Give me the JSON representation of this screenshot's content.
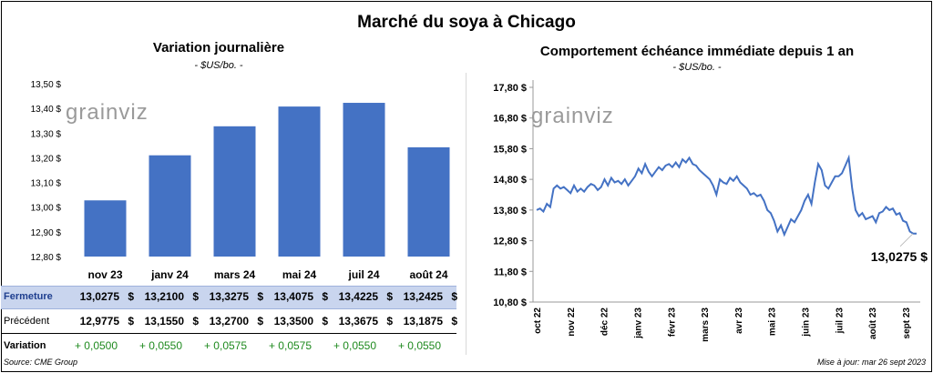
{
  "title": "Marché du soya à Chicago",
  "left_panel": {
    "title": "Variation  journalière",
    "subtitle": "- $US/bo. -",
    "logo": "grainviz"
  },
  "right_panel": {
    "title": "Comportement  échéance immédiate depuis 1 an",
    "subtitle": "- $US/bo. -",
    "logo": "grainviz",
    "last_value_label": "13,0275 $"
  },
  "table": {
    "rows": [
      {
        "label": "Fermeture",
        "values": [
          "13,0275",
          "13,2100",
          "13,3275",
          "13,4075",
          "13,4225",
          "13,2425"
        ],
        "unit": "$"
      },
      {
        "label": "Précédent",
        "values": [
          "12,9775",
          "13,1550",
          "13,2700",
          "13,3500",
          "13,3675",
          "13,1875"
        ],
        "unit": "$"
      },
      {
        "label": "Variation",
        "values": [
          "+ 0,0500",
          "+ 0,0550",
          "+ 0,0575",
          "+ 0,0575",
          "+ 0,0550",
          "+ 0,0550"
        ],
        "unit": ""
      }
    ],
    "colors": {
      "fermeture_bg": "#c9d5ee",
      "variation_text": "#1f8a1f"
    }
  },
  "footer": {
    "source": "Source: CME Group",
    "updated": "Mise à jour: mar 26 sept 2023"
  },
  "chart_data": [
    {
      "type": "bar",
      "categories": [
        "nov 23",
        "janv 24",
        "mars 24",
        "mai 24",
        "juil 24",
        "août 24"
      ],
      "values": [
        13.0275,
        13.21,
        13.3275,
        13.4075,
        13.4225,
        13.2425
      ],
      "ylim": [
        12.8,
        13.5
      ],
      "yticks": [
        12.8,
        12.9,
        13.0,
        13.1,
        13.2,
        13.3,
        13.4,
        13.5
      ],
      "ytick_labels": [
        "12,80 $",
        "12,90 $",
        "13,00 $",
        "13,10 $",
        "13,20 $",
        "13,30 $",
        "13,40 $",
        "13,50 $"
      ],
      "color": "#4472c4",
      "grid": false
    },
    {
      "type": "line",
      "x_labels": [
        "oct 22",
        "nov 22",
        "déc 22",
        "janv 23",
        "févr 23",
        "mars 23",
        "avr 23",
        "mai 23",
        "juin 23",
        "juil 23",
        "août 23",
        "sept 23"
      ],
      "ylim": [
        10.8,
        17.8
      ],
      "yticks": [
        10.8,
        11.8,
        12.8,
        13.8,
        14.8,
        15.8,
        16.8,
        17.8
      ],
      "ytick_labels": [
        "10,80 $",
        "11,80 $",
        "12,80 $",
        "13,80 $",
        "14,80 $",
        "15,80 $",
        "16,80 $",
        "17,80 $"
      ],
      "values": [
        13.8,
        13.85,
        13.75,
        14.0,
        13.9,
        14.5,
        14.6,
        14.5,
        14.55,
        14.45,
        14.35,
        14.6,
        14.4,
        14.5,
        14.4,
        14.55,
        14.65,
        14.6,
        14.45,
        14.55,
        14.8,
        14.6,
        14.85,
        14.7,
        14.75,
        14.65,
        14.8,
        14.6,
        14.75,
        14.9,
        15.15,
        15.0,
        15.3,
        15.05,
        14.9,
        15.05,
        15.2,
        15.1,
        15.25,
        15.3,
        15.2,
        15.35,
        15.2,
        15.45,
        15.35,
        15.5,
        15.3,
        15.25,
        15.1,
        15.0,
        14.9,
        14.8,
        14.6,
        14.3,
        14.8,
        14.7,
        14.65,
        14.85,
        14.75,
        14.9,
        14.7,
        14.6,
        14.5,
        14.3,
        14.35,
        14.25,
        14.3,
        14.1,
        13.8,
        13.7,
        13.45,
        13.1,
        13.3,
        13.0,
        13.25,
        13.5,
        13.4,
        13.6,
        13.8,
        14.1,
        14.3,
        14.0,
        14.7,
        15.3,
        15.1,
        14.6,
        14.5,
        14.7,
        14.9,
        14.9,
        15.0,
        15.25,
        15.5,
        14.5,
        13.8,
        13.6,
        13.7,
        13.5,
        13.55,
        13.6,
        13.4,
        13.7,
        13.75,
        13.9,
        13.8,
        13.85,
        13.65,
        13.7,
        13.45,
        13.4,
        13.1,
        13.03,
        13.03
      ]
    }
  ]
}
